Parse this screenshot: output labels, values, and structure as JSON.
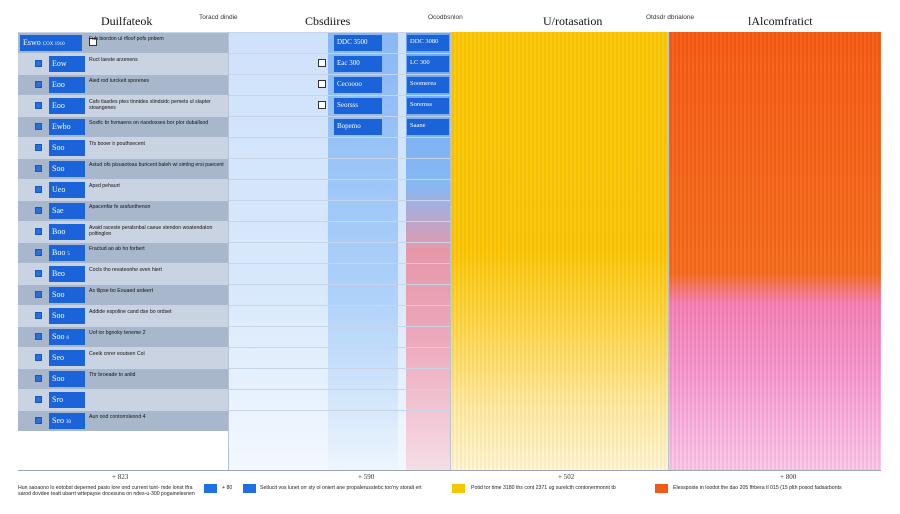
{
  "header": {
    "col1_title": "Duilfateok",
    "col1_sub": "Toracd dindie",
    "col2_title": "Cbsdiires",
    "col2_sub": "Ocodbsnlon",
    "col3_title": "U/rotasation",
    "col3_sub": "Otdsdr dbrialone",
    "col4_title": "lAlcomfratict"
  },
  "rows": [
    {
      "chip": "Eswo",
      "chip_small": "COX 1910",
      "desc": "Fuh biordon ul rfloof pofs pnbem",
      "b": "DDC 3500",
      "c": "DDC 3080"
    },
    {
      "chip": "Eow",
      "chip_small": "",
      "desc": "Ruct laeste arzenens",
      "b": "Eac 300",
      "c": "LC 300"
    },
    {
      "chip": "Eoo",
      "chip_small": "",
      "desc": "Aied rod lurckeit sporenes",
      "b": "Cecoooo",
      "c": "Soomerea"
    },
    {
      "chip": "Eoo",
      "chip_small": "",
      "desc": "Cafs tiasdes ptes tinntdes slindsidc pemets ul slapter stoangenes",
      "b": "Seorsss",
      "c": "Soremss"
    },
    {
      "chip": "Ewbo",
      "chip_small": "",
      "desc": "Sosfic br hvmaens on riaodosses bor plor duballsod",
      "b": "Bopemo",
      "c": "Saane"
    },
    {
      "chip": "Soo",
      "chip_small": "",
      "desc": "Tfs booer ir pouthsecent",
      "b": "",
      "c": ""
    },
    {
      "chip": "Soo",
      "chip_small": "",
      "desc": "Astud ofs pisuaotoas buricent baleh wi simlng ersi paecent",
      "b": "",
      "c": ""
    },
    {
      "chip": "Ueo",
      "chip_small": "",
      "desc": "Apsd pehaurt",
      "b": "",
      "c": ""
    },
    {
      "chip": "Sae",
      "chip_small": "",
      "desc": "Apacenfar fe arafunthenon",
      "b": "",
      "c": ""
    },
    {
      "chip": "Boo",
      "chip_small": "",
      "desc": "Avaid raceste peralsnbal caeue stendon woatendaton poltinglon",
      "b": "",
      "c": ""
    },
    {
      "chip": "Boo",
      "chip_small": "5",
      "desc": "Fractud ao ab ho forbert",
      "b": "",
      "c": ""
    },
    {
      "chip": "Beo",
      "chip_small": "",
      "desc": "Cocls tho revateonhe sven hiert",
      "b": "",
      "c": ""
    },
    {
      "chip": "Soo",
      "chip_small": "",
      "desc": "As tlipse bo Eouaed ardeert",
      "b": "",
      "c": ""
    },
    {
      "chip": "Soo",
      "chip_small": "",
      "desc": "Addide espoline cand dse bo ordset",
      "b": "",
      "c": ""
    },
    {
      "chip": "Soo",
      "chip_small": "6",
      "desc": "Uof ior bgnoky teneme 2",
      "b": "",
      "c": ""
    },
    {
      "chip": "Seo",
      "chip_small": "",
      "desc": "Ceeik cnrer eoutsen Col",
      "b": "",
      "c": ""
    },
    {
      "chip": "Soo",
      "chip_small": "",
      "desc": "Thr broeade to anlid",
      "b": "",
      "c": ""
    },
    {
      "chip": "Sro",
      "chip_small": "",
      "desc": "",
      "b": "",
      "c": ""
    },
    {
      "chip": "Seo",
      "chip_small": "30",
      "desc": "Aun ood contorrsleond 4",
      "b": "",
      "c": ""
    }
  ],
  "axis": {
    "a": "+ 823",
    "b": "+ 590",
    "c": "+ 502",
    "d": "+ 800"
  },
  "legend": {
    "t1": "Hun saoaono lo eotobst deperned pasio lore ond current tunt- mde lonst tfra sarod dovdee teatt ubarrt wttepayse docesuna on ndes-u-300 pogainelesnen",
    "t2": "+ 80",
    "t3": "Setlucit vos lunet orr sty ol oniert ane propalerusstebc too'ny storalt ert",
    "t4": "Potid tor time 3180 ths cont 2371 ug surelcth contonermonnt tb",
    "t5": "Elessposte in loodot the dao 205 ffrbera tl 015 (15 plth posod fadsarbonts",
    "blue": "#1f6fe5",
    "yellow": "#f4c800",
    "orange": "#f05a16"
  }
}
